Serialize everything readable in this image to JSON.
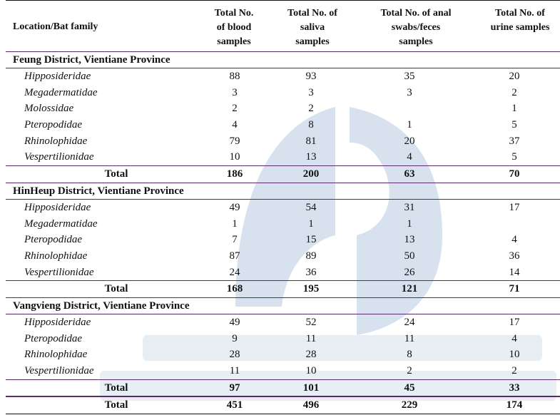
{
  "header": {
    "col0": "Location/Bat family",
    "col1": [
      "Total No.",
      "of blood",
      "samples"
    ],
    "col2": [
      "Total No. of",
      "saliva",
      "samples"
    ],
    "col3": [
      "Total No. of anal",
      "swabs/feces",
      "samples"
    ],
    "col4": [
      "Total No. of",
      "urine samples"
    ]
  },
  "sections": [
    {
      "title": "Feung District, Vientiane Province",
      "rows": [
        {
          "family": "Hipposideridae",
          "v": [
            "88",
            "93",
            "35",
            "20"
          ]
        },
        {
          "family": "Megadermatidae",
          "v": [
            "3",
            "3",
            "3",
            "2"
          ]
        },
        {
          "family": "Molossidae",
          "v": [
            "2",
            "2",
            "",
            "1"
          ]
        },
        {
          "family": "Pteropodidae",
          "v": [
            "4",
            "8",
            "1",
            "5"
          ]
        },
        {
          "family": "Rhinolophidae",
          "v": [
            "79",
            "81",
            "20",
            "37"
          ]
        },
        {
          "family": "Vespertilionidae",
          "v": [
            "10",
            "13",
            "4",
            "5"
          ]
        }
      ],
      "total": {
        "label": "Total",
        "v": [
          "186",
          "200",
          "63",
          "70"
        ]
      }
    },
    {
      "title": "HinHeup District, Vientiane Province",
      "rows": [
        {
          "family": "Hipposideridae",
          "v": [
            "49",
            "54",
            "31",
            "17"
          ]
        },
        {
          "family": "Megadermatidae",
          "v": [
            "1",
            "1",
            "1",
            ""
          ]
        },
        {
          "family": "Pteropodidae",
          "v": [
            "7",
            "15",
            "13",
            "4"
          ]
        },
        {
          "family": "Rhinolophidae",
          "v": [
            "87",
            "89",
            "50",
            "36"
          ]
        },
        {
          "family": "Vespertilionidae",
          "v": [
            "24",
            "36",
            "26",
            "14"
          ]
        }
      ],
      "total": {
        "label": "Total",
        "v": [
          "168",
          "195",
          "121",
          "71"
        ]
      }
    },
    {
      "title": "Vangvieng District, Vientiane Province",
      "rows": [
        {
          "family": "Hipposideridae",
          "v": [
            "49",
            "52",
            "24",
            "17"
          ]
        },
        {
          "family": "Pteropodidae",
          "v": [
            "9",
            "11",
            "11",
            "4"
          ]
        },
        {
          "family": "Rhinolophidae",
          "v": [
            "28",
            "28",
            "8",
            "10"
          ]
        },
        {
          "family": "Vespertilionidae",
          "v": [
            "11",
            "10",
            "2",
            "2"
          ]
        }
      ],
      "total": {
        "label": "Total",
        "v": [
          "97",
          "101",
          "45",
          "33"
        ]
      }
    }
  ],
  "grand_total": {
    "label": "Total",
    "v": [
      "451",
      "496",
      "229",
      "174"
    ]
  },
  "watermark": {
    "color": "#b7cbe0",
    "icon": "institute-logo-watermark"
  }
}
